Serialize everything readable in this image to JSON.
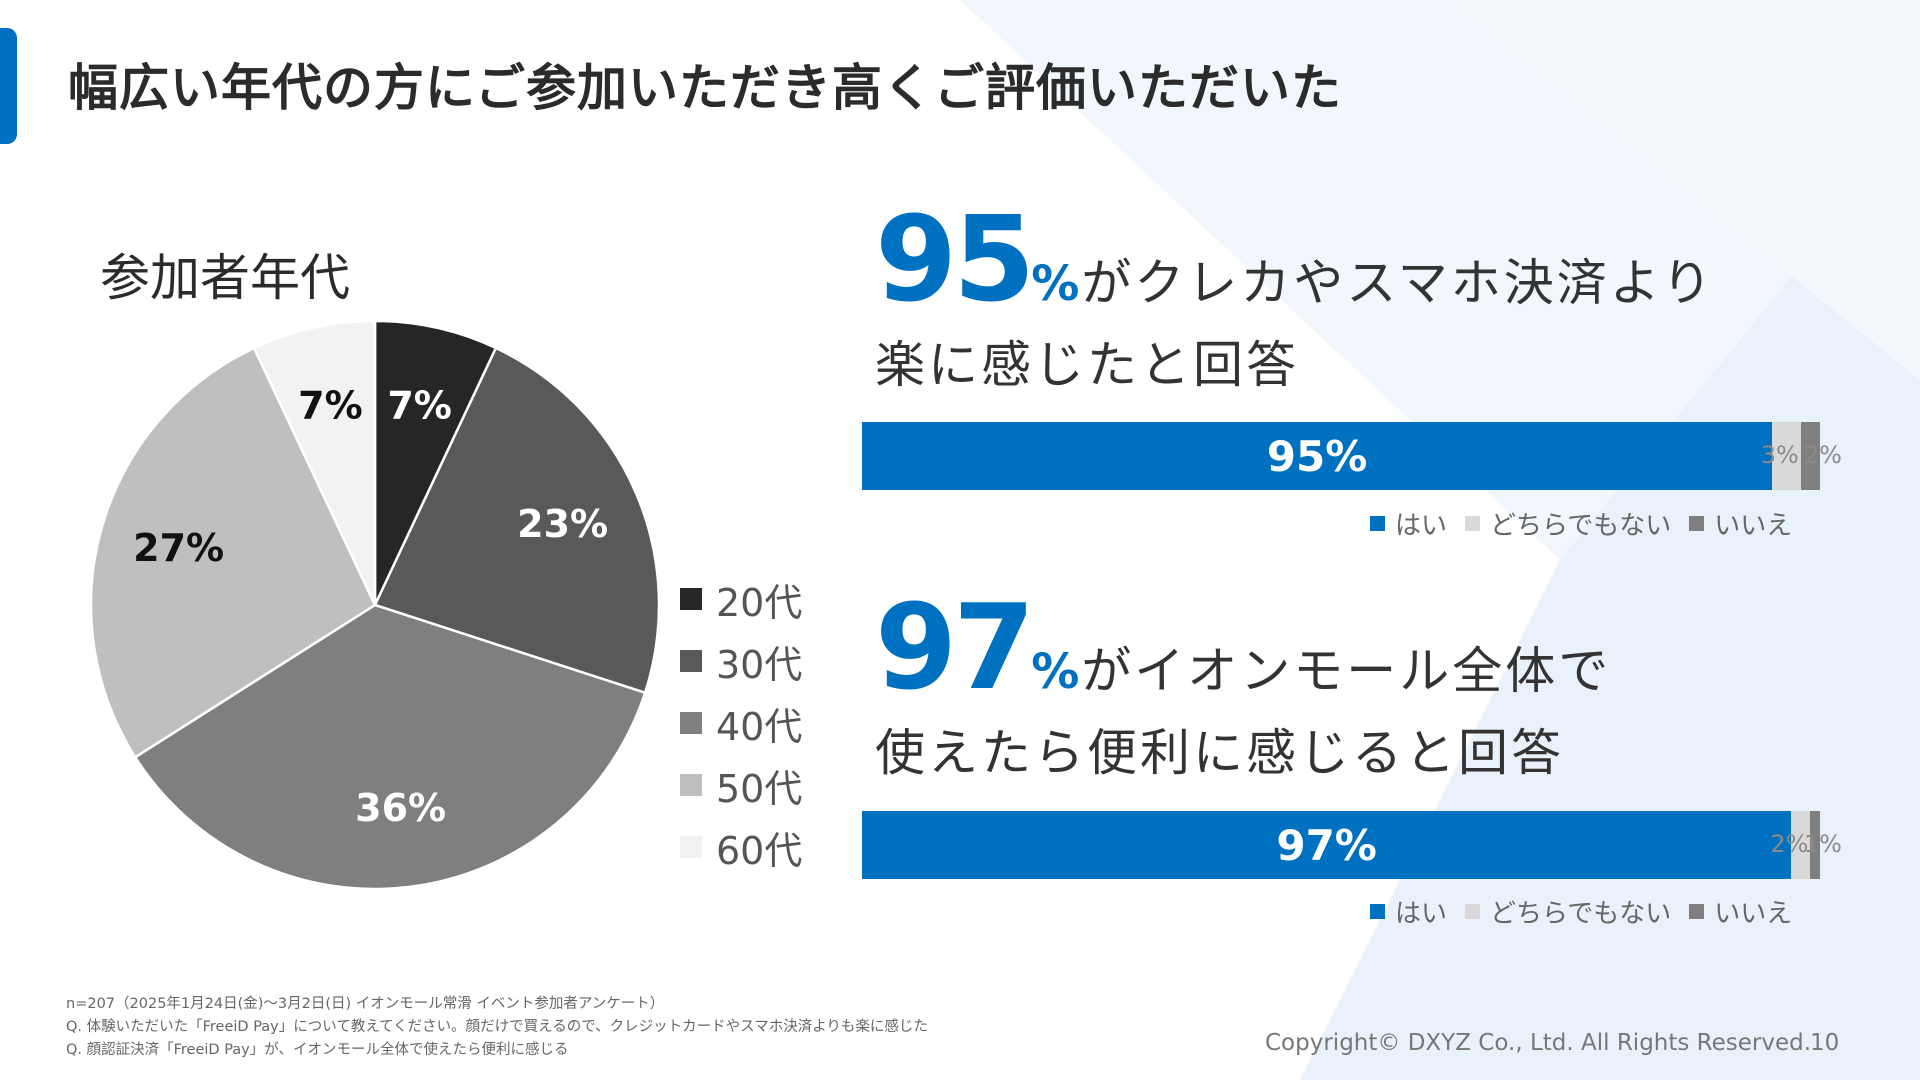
{
  "title": "幅広い年代の方にご参加いただき高くご評価いただいた",
  "age_chart": {
    "title": "参加者年代",
    "legend": [
      "20代",
      "30代",
      "40代",
      "50代",
      "60代"
    ]
  },
  "stat1": {
    "number": "95",
    "unit": "%",
    "line1": "がクレカやスマホ決済より",
    "line2": "楽に感じたと回答"
  },
  "stat2": {
    "number": "97",
    "unit": "%",
    "line1": "がイオンモール全体で",
    "line2": "使えたら便利に感じると回答"
  },
  "bar_legend": [
    "はい",
    "どちらでもない",
    "いいえ"
  ],
  "chart_data": [
    {
      "type": "pie",
      "title": "参加者年代",
      "categories": [
        "20代",
        "30代",
        "40代",
        "50代",
        "60代"
      ],
      "values": [
        7,
        23,
        36,
        27,
        7
      ],
      "labels": [
        "7%",
        "23%",
        "36%",
        "27%",
        "7%"
      ],
      "colors": [
        "#262626",
        "#595959",
        "#7f7f7f",
        "#bfbfbf",
        "#f2f2f2"
      ],
      "label_colors": [
        "#ffffff",
        "#ffffff",
        "#ffffff",
        "#111111",
        "#111111"
      ],
      "legend_position": "right"
    },
    {
      "type": "bar",
      "orientation": "horizontal-stacked",
      "title": "クレカやスマホ決済より楽に感じた",
      "series": [
        {
          "name": "はい",
          "values": [
            95
          ],
          "label": "95%",
          "color": "#0070c0"
        },
        {
          "name": "どちらでもない",
          "values": [
            3
          ],
          "label": "3%",
          "color": "#d9d9d9"
        },
        {
          "name": "いいえ",
          "values": [
            2
          ],
          "label": "2%",
          "color": "#7f7f7f"
        }
      ],
      "legend_position": "bottom-right"
    },
    {
      "type": "bar",
      "orientation": "horizontal-stacked",
      "title": "イオンモール全体で使えたら便利に感じる",
      "series": [
        {
          "name": "はい",
          "values": [
            97
          ],
          "label": "97%",
          "color": "#0070c0"
        },
        {
          "name": "どちらでもない",
          "values": [
            2
          ],
          "label": "2%",
          "color": "#d9d9d9"
        },
        {
          "name": "いいえ",
          "values": [
            1
          ],
          "label": "1%",
          "color": "#7f7f7f"
        }
      ],
      "legend_position": "bottom-right"
    }
  ],
  "footnotes": [
    "n=207（2025年1月24日(金)〜3月2日(日) イオンモール常滑 イベント参加者アンケート）",
    "Q. 体験いただいた「FreeiD Pay」について教えてください。顔だけで買えるので、クレジットカードやスマホ決済よりも楽に感じた",
    "Q. 顔認証決済「FreeiD Pay」が、イオンモール全体で使えたら便利に感じる"
  ],
  "copyright": "Copyright© DXYZ Co., Ltd. All Rights Reserved.",
  "page_number": "10"
}
